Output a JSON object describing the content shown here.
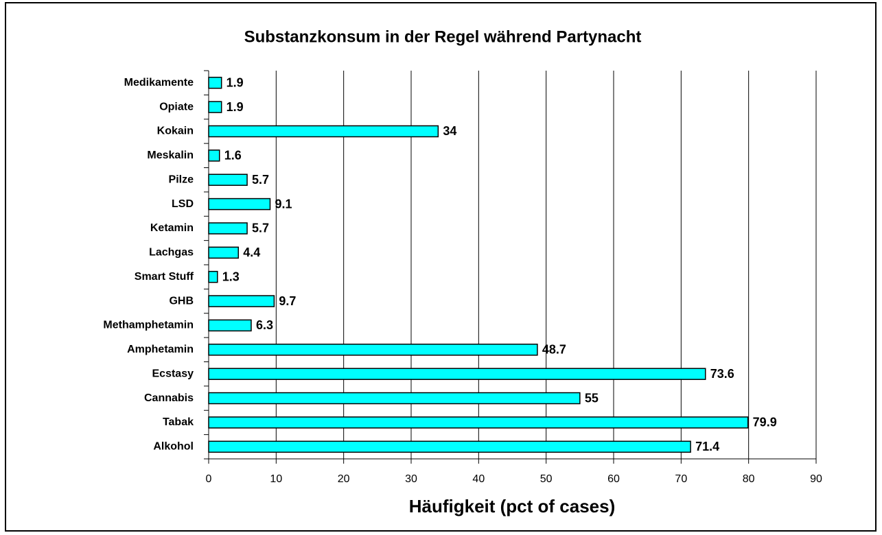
{
  "chart_data": {
    "type": "bar",
    "orientation": "horizontal",
    "title": "Substanzkonsum in der Regel während Partynacht",
    "x_label": "Häufigkeit (pct of cases)",
    "categories": [
      "Medikamente",
      "Opiate",
      "Kokain",
      "Meskalin",
      "Pilze",
      "LSD",
      "Ketamin",
      "Lachgas",
      "Smart Stuff",
      "GHB",
      "Methamphetamin",
      "Amphetamin",
      "Ecstasy",
      "Cannabis",
      "Tabak",
      "Alkohol"
    ],
    "values": [
      1.9,
      1.9,
      34,
      1.6,
      5.7,
      9.1,
      5.7,
      4.4,
      1.3,
      9.7,
      6.3,
      48.7,
      73.6,
      55,
      79.9,
      71.4
    ],
    "color": "#00ffff",
    "xlim": [
      0,
      90
    ],
    "xticks": [
      0,
      10,
      20,
      30,
      40,
      50,
      60,
      70,
      80,
      90
    ],
    "grid": true
  }
}
